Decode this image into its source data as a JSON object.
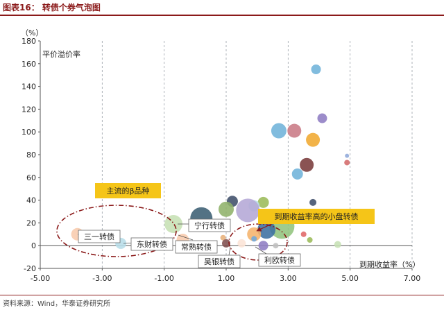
{
  "figure_title": "图表16：  转债个券气泡图",
  "source": "资料来源：Wind，华泰证券研究所",
  "chart_data": {
    "type": "bubble",
    "title": "",
    "xlabel": "到期收益率（%）",
    "ylabel": "平价溢价率",
    "y_unit": "（%）",
    "xlim": [
      -5,
      7
    ],
    "ylim": [
      -20,
      180
    ],
    "xticks": [
      "-5.00",
      "-3.00",
      "-1.00",
      "1.00",
      "3.00",
      "5.00",
      "7.00"
    ],
    "yticks": [
      "-20",
      "0",
      "20",
      "40",
      "60",
      "80",
      "100",
      "120",
      "140",
      "160",
      "180"
    ],
    "grid": "vertical-dashed",
    "points": [
      {
        "x": 3.9,
        "y": 155,
        "r": 7,
        "color": "#6fb3d9"
      },
      {
        "x": 4.1,
        "y": 112,
        "r": 7,
        "color": "#8e7cc3"
      },
      {
        "x": 2.7,
        "y": 101,
        "r": 11,
        "color": "#6fb3d9"
      },
      {
        "x": 3.2,
        "y": 101,
        "r": 10,
        "color": "#c97a85"
      },
      {
        "x": 3.8,
        "y": 93,
        "r": 10,
        "color": "#f0a830"
      },
      {
        "x": 4.9,
        "y": 79,
        "r": 3,
        "color": "#8fa8d9"
      },
      {
        "x": 3.6,
        "y": 71,
        "r": 10,
        "color": "#7a3b3b"
      },
      {
        "x": 4.9,
        "y": 73,
        "r": 4,
        "color": "#d46a6a"
      },
      {
        "x": 3.3,
        "y": 63,
        "r": 8,
        "color": "#6fb3d9"
      },
      {
        "x": 3.8,
        "y": 38,
        "r": 5,
        "color": "#3f4f6a"
      },
      {
        "x": 1.2,
        "y": 39,
        "r": 8,
        "color": "#3f4f6a"
      },
      {
        "x": 2.2,
        "y": 38,
        "r": 8,
        "color": "#9bbb59"
      },
      {
        "x": 1.9,
        "y": 35,
        "r": 8,
        "color": "#b7dde8"
      },
      {
        "x": 1.7,
        "y": 31,
        "r": 17,
        "color": "#b4a7d6"
      },
      {
        "x": 1.0,
        "y": 32,
        "r": 11,
        "color": "#8fb26a"
      },
      {
        "x": 0.2,
        "y": 24,
        "r": 16,
        "color": "#3b5f73"
      },
      {
        "x": -0.7,
        "y": 19,
        "r": 13,
        "color": "#c6e0b4"
      },
      {
        "x": 2.8,
        "y": 17,
        "r": 18,
        "color": "#92c47d"
      },
      {
        "x": 2.3,
        "y": 14,
        "r": 13,
        "color": "#3b6fa0"
      },
      {
        "x": 1.9,
        "y": 10,
        "r": 10,
        "color": "#f5b36b"
      },
      {
        "x": 0.9,
        "y": 7,
        "r": 4,
        "color": "#e8b07a"
      },
      {
        "x": -3.8,
        "y": 10,
        "r": 9,
        "color": "#f8cbad"
      },
      {
        "x": -2.4,
        "y": 2,
        "r": 8,
        "color": "#b7dde8"
      },
      {
        "x": -0.4,
        "y": 5,
        "r": 9,
        "color": "#f8cbad"
      },
      {
        "x": 1.0,
        "y": 2,
        "r": 6,
        "color": "#7f4f4f"
      },
      {
        "x": 1.5,
        "y": 2,
        "r": 6,
        "color": "#fce4d6"
      },
      {
        "x": 2.2,
        "y": 0,
        "r": 7,
        "color": "#8e7cc3"
      },
      {
        "x": 2.6,
        "y": 0,
        "r": 4,
        "color": "#bfbfbf"
      },
      {
        "x": 3.5,
        "y": 10,
        "r": 4,
        "color": "#e06666"
      },
      {
        "x": 3.7,
        "y": 5,
        "r": 4,
        "color": "#9bbb59"
      },
      {
        "x": 4.6,
        "y": 1,
        "r": 5,
        "color": "#c6e0b4"
      },
      {
        "x": 1.9,
        "y": 6,
        "r": 4,
        "color": "#6fa8dc"
      }
    ],
    "annotations": [
      {
        "text": "主流的β品种",
        "style": "orange-box"
      },
      {
        "text": "到期收益率高的小盘转债",
        "style": "orange-box"
      },
      {
        "text": "三一转债",
        "style": "callout"
      },
      {
        "text": "东财转债",
        "style": "callout"
      },
      {
        "text": "宁行转债",
        "style": "callout"
      },
      {
        "text": "常熟转债",
        "style": "callout"
      },
      {
        "text": "吴银转债",
        "style": "callout"
      },
      {
        "text": "利欧转债",
        "style": "callout"
      }
    ],
    "legend": "none"
  },
  "colors": {
    "accent": "#8b1a1a",
    "highlight": "#f5c518",
    "ellipse": "#8b1a1a"
  }
}
